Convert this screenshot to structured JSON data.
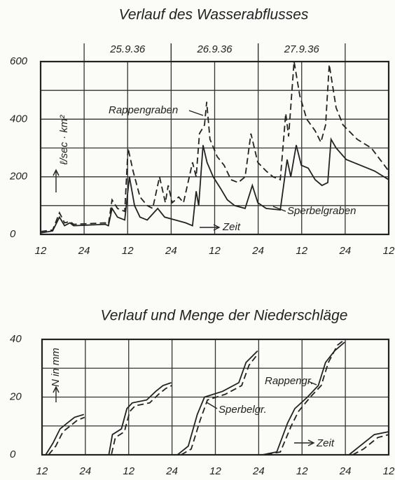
{
  "chart_data": [
    {
      "type": "line",
      "title": "Verlauf des Wasserabflusses",
      "y_label": "ℓ/sec · km²",
      "annotations": [
        "Rappengraben",
        "Sperbelgraben",
        "Zeit"
      ],
      "date_labels": [
        {
          "label": "25.9.36",
          "start": 24,
          "end": 48
        },
        {
          "label": "26.9.36",
          "start": 48,
          "end": 72
        },
        {
          "label": "27.9.36",
          "start": 72,
          "end": 96
        }
      ],
      "xlim": [
        12,
        108
      ],
      "xticks": [
        12,
        24,
        {
          "value": 36,
          "label": "12"
        },
        {
          "value": 48,
          "label": "24"
        },
        {
          "value": 60,
          "label": "12"
        },
        {
          "value": 72,
          "label": "24"
        },
        {
          "value": 84,
          "label": "12"
        },
        {
          "value": 96,
          "label": "24"
        },
        {
          "value": 108,
          "label": "12"
        }
      ],
      "ylim": [
        0,
        600
      ],
      "yticks": [
        0,
        200,
        400,
        600
      ],
      "y_minor_ticks": [
        100,
        300,
        500
      ],
      "grid": true,
      "series": [
        {
          "name": "Rappengraben",
          "color": "#222",
          "dash": true,
          "x": [
            12,
            15.3,
            17.2,
            18.6,
            20.1,
            21.1,
            29.8,
            30.7,
            31.7,
            33.2,
            35.2,
            36.1,
            37.5,
            39.4,
            41.4,
            42.9,
            44.8,
            46.4,
            47.2,
            48.3,
            50.1,
            51.4,
            53.9,
            54.9,
            55.8,
            57.2,
            57.8,
            58.7,
            60.7,
            62.6,
            64.5,
            66.5,
            68.4,
            70,
            71.9,
            74.2,
            76.1,
            78.1,
            79.6,
            80.4,
            81.9,
            83.5,
            85.4,
            87.7,
            89.3,
            90.6,
            91.6,
            93.5,
            95.4,
            99.3,
            103.2,
            108
          ],
          "values": [
            10,
            15,
            75,
            40,
            45,
            35,
            40,
            35,
            120,
            90,
            80,
            300,
            220,
            130,
            100,
            90,
            200,
            110,
            170,
            110,
            130,
            110,
            250,
            200,
            350,
            380,
            460,
            330,
            270,
            240,
            190,
            180,
            200,
            350,
            250,
            220,
            200,
            190,
            420,
            340,
            600,
            480,
            400,
            360,
            320,
            380,
            590,
            440,
            380,
            330,
            300,
            220
          ]
        },
        {
          "name": "Sperbelgraben",
          "color": "#222",
          "dash": false,
          "x": [
            12,
            15.3,
            17.2,
            18.6,
            20.1,
            21.1,
            29.8,
            30.7,
            31.7,
            33.2,
            35.2,
            36.5,
            37.9,
            39.4,
            41.4,
            44.3,
            46.2,
            49.1,
            52,
            53.9,
            54.9,
            55.6,
            56.8,
            57.9,
            59.6,
            61.6,
            63.5,
            65.5,
            68.4,
            70.4,
            71.9,
            74.2,
            78.1,
            80,
            81,
            82.5,
            83.9,
            85.8,
            87.7,
            89.6,
            91.2,
            92.1,
            93.5,
            96.3,
            100.2,
            104.1,
            108
          ],
          "values": [
            5,
            12,
            60,
            30,
            40,
            30,
            35,
            30,
            90,
            60,
            50,
            200,
            100,
            60,
            50,
            90,
            60,
            50,
            40,
            30,
            150,
            100,
            310,
            250,
            200,
            160,
            120,
            100,
            90,
            170,
            110,
            90,
            85,
            260,
            200,
            310,
            240,
            230,
            190,
            170,
            180,
            330,
            300,
            260,
            240,
            220,
            190
          ]
        }
      ]
    },
    {
      "type": "line",
      "title": "Verlauf und Menge der Niederschläge",
      "y_label": "N in mm",
      "annotations": [
        "Rappengr.",
        "Sperbelgr.",
        "Zeit"
      ],
      "xlim": [
        12,
        108
      ],
      "xticks": [
        12,
        24,
        {
          "value": 36,
          "label": "12"
        },
        {
          "value": 48,
          "label": "24"
        },
        {
          "value": 60,
          "label": "12"
        },
        {
          "value": 72,
          "label": "24"
        },
        {
          "value": 84,
          "label": "12"
        },
        {
          "value": 96,
          "label": "24"
        },
        {
          "value": 108,
          "label": "12"
        }
      ],
      "ylim": [
        0,
        40
      ],
      "yticks": [
        0,
        20,
        40
      ],
      "y_minor_ticks": [
        10,
        30
      ],
      "grid": true,
      "series": [
        {
          "name": "Rappengr.",
          "color": "#222",
          "dash": true,
          "x": [
            13.8,
            15.8,
            17.8,
            19.8,
            21.8,
            23.8,
            null,
            26,
            31.2,
            32.3,
            34.8,
            36.3,
            37.8,
            41.8,
            44.3,
            46.3,
            47.9,
            null,
            50.5,
            53.3,
            55.8,
            57.8,
            62.8,
            67.3,
            69.3,
            71.8,
            null,
            74,
            78,
            81,
            83,
            86.3,
            89.3,
            91.3,
            93.8,
            95.9,
            null,
            98,
            101,
            105,
            108
          ],
          "values": [
            0,
            3,
            8,
            10,
            12,
            13,
            null,
            0,
            0,
            6,
            8,
            15,
            17,
            18,
            21,
            23,
            24,
            null,
            0,
            2,
            12,
            19,
            21,
            24,
            31,
            35,
            null,
            0,
            1,
            10,
            15,
            20,
            24,
            32,
            38,
            40,
            null,
            0,
            2,
            6,
            7
          ]
        },
        {
          "name": "Sperbelgr.",
          "color": "#222",
          "dash": false,
          "x": [
            13,
            15,
            17,
            19,
            21,
            23.6,
            null,
            25.5,
            30.5,
            31.5,
            34,
            35.5,
            37,
            41,
            43.5,
            45.5,
            47.8,
            null,
            49.5,
            52.5,
            55,
            57,
            62,
            66.5,
            68.5,
            71.7,
            null,
            73,
            77,
            80,
            82,
            85.5,
            88.5,
            90.5,
            93,
            95.8,
            null,
            97,
            100,
            104,
            108
          ],
          "values": [
            0,
            4,
            9,
            11,
            13,
            14,
            null,
            0,
            0,
            7,
            9,
            16,
            18,
            19,
            22,
            24,
            25,
            null,
            0,
            3,
            14,
            20,
            22,
            25,
            32,
            36,
            null,
            0,
            1,
            11,
            16,
            20,
            24,
            32,
            36,
            39,
            null,
            0,
            3,
            7,
            8
          ]
        }
      ]
    }
  ]
}
